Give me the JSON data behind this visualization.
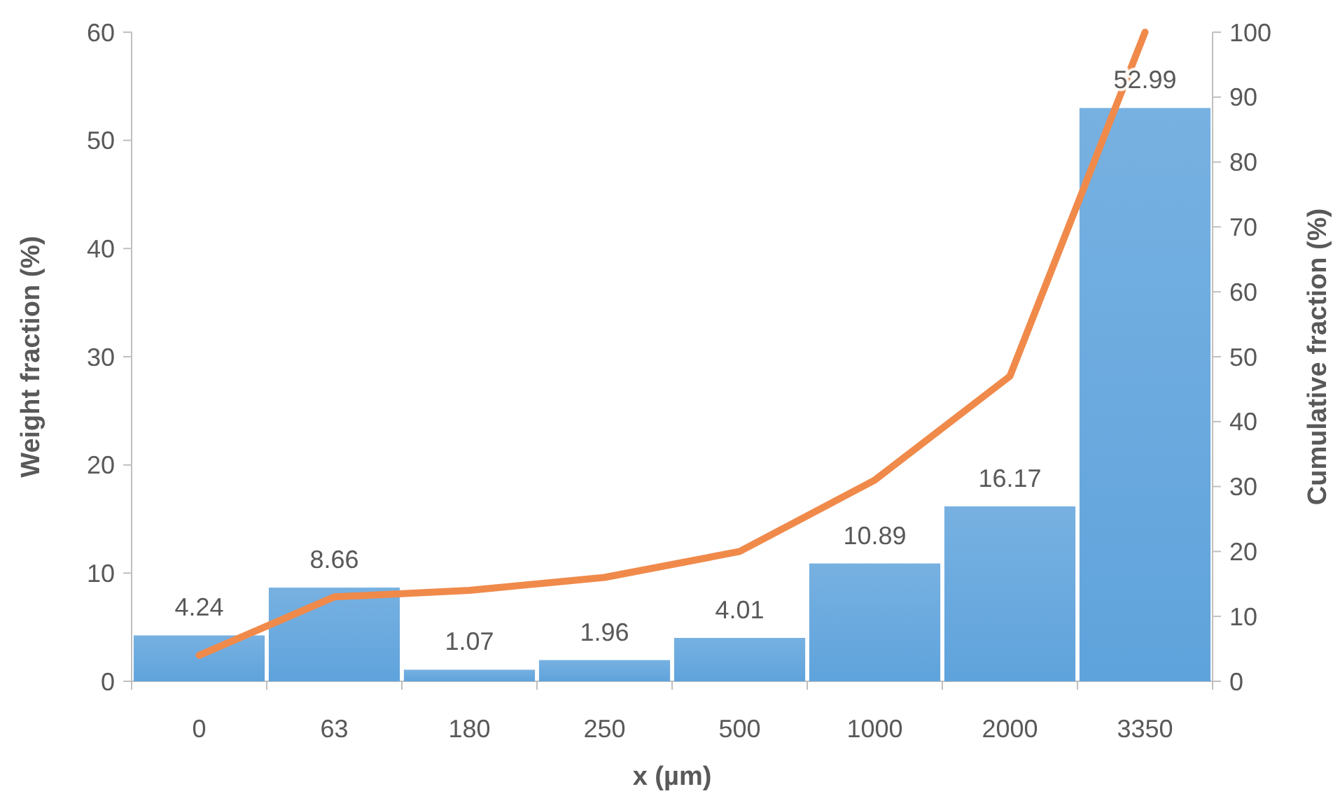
{
  "chart_data": {
    "type": "bar",
    "xlabel": "x (µm)",
    "ylabel": "Weight fraction (%)",
    "y2label": "Cumulative fraction (%)",
    "categories": [
      "0",
      "63",
      "180",
      "250",
      "500",
      "1000",
      "2000",
      "3350"
    ],
    "ylim": [
      0,
      60
    ],
    "yticks": [
      0,
      10,
      20,
      30,
      40,
      50,
      60
    ],
    "y2lim": [
      0,
      100
    ],
    "y2ticks": [
      0,
      10,
      20,
      30,
      40,
      50,
      60,
      70,
      80,
      90,
      100
    ],
    "series": [
      {
        "color": "#5fa3dc",
        "values": [
          4.24,
          8.66,
          1.07,
          1.96,
          4.01,
          10.89,
          16.17,
          52.99
        ],
        "value_labels": [
          "4.24",
          "8.66",
          "1.07",
          "1.96",
          "4.01",
          "10.89",
          "16.17",
          "52.99"
        ]
      },
      {
        "type": "line",
        "axis": "y2",
        "color": "#f08a4b",
        "values": [
          4,
          13,
          14,
          16,
          20,
          31,
          47,
          100
        ]
      }
    ]
  }
}
